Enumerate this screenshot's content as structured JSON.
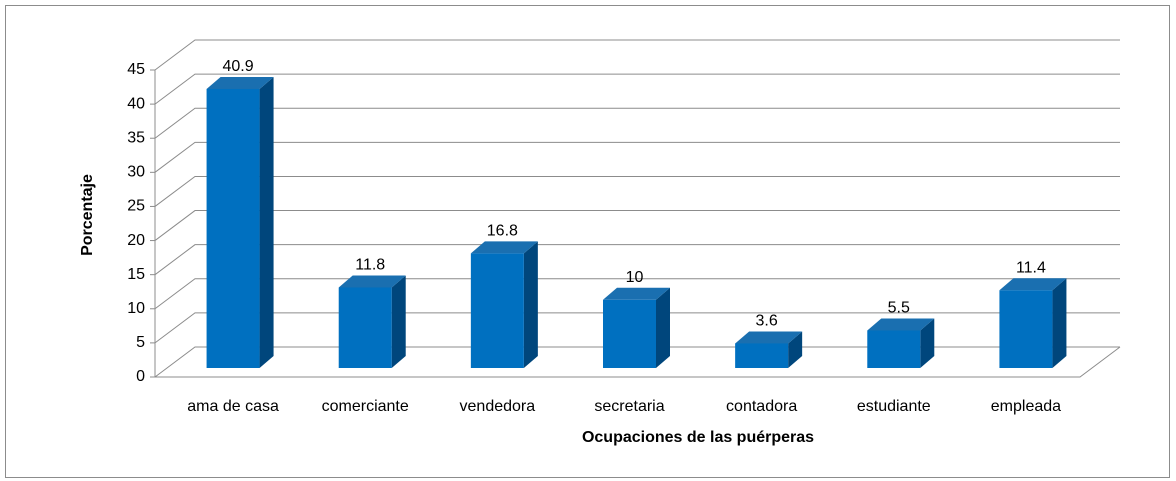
{
  "chart_data": {
    "type": "bar3d",
    "categories": [
      "ama de casa",
      "comerciante",
      "vendedora",
      "secretaria",
      "contadora",
      "estudiante",
      "empleada"
    ],
    "values": [
      40.9,
      11.8,
      16.8,
      10,
      3.6,
      5.5,
      11.4
    ],
    "color": "#0070c0",
    "x_label": "Ocupaciones de las puérperas",
    "y_label": "Porcentaje",
    "ylim": [
      0,
      45
    ],
    "yticks": [
      0,
      5,
      10,
      15,
      20,
      25,
      30,
      35,
      40,
      45
    ],
    "grid": true
  }
}
